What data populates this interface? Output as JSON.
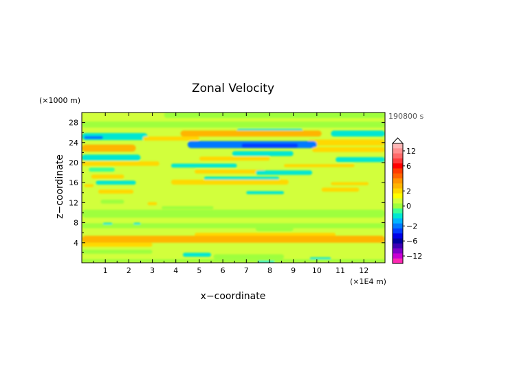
{
  "chart_data": {
    "type": "heatmap",
    "title": "Zonal Velocity",
    "xlabel": "x−coordinate",
    "ylabel": "z−coordinate",
    "x_unit": "(×1E4 m)",
    "y_unit": "(×1000 m)",
    "time_label": "190800 s",
    "xlim": [
      0,
      12.9
    ],
    "ylim": [
      0,
      30
    ],
    "x_ticks": [
      {
        "value": 1,
        "label": "1"
      },
      {
        "value": 2,
        "label": "2"
      },
      {
        "value": 3,
        "label": "3"
      },
      {
        "value": 4,
        "label": "4"
      },
      {
        "value": 5,
        "label": "5"
      },
      {
        "value": 6,
        "label": "6"
      },
      {
        "value": 7,
        "label": "7"
      },
      {
        "value": 8,
        "label": "8"
      },
      {
        "value": 9,
        "label": "9"
      },
      {
        "value": 10,
        "label": "10"
      },
      {
        "value": 11,
        "label": "11"
      },
      {
        "value": 12,
        "label": "12"
      }
    ],
    "y_ticks": [
      {
        "value": 4,
        "label": "4"
      },
      {
        "value": 8,
        "label": "8"
      },
      {
        "value": 12,
        "label": "12"
      },
      {
        "value": 16,
        "label": "16"
      },
      {
        "value": 20,
        "label": "20"
      },
      {
        "value": 24,
        "label": "24"
      },
      {
        "value": 28,
        "label": "28"
      }
    ],
    "background_value": 1.0,
    "bands": [
      {
        "z": 29.5,
        "thickness": 1.2,
        "value": 0.3,
        "x_start": 3.5,
        "x_end": 12.9
      },
      {
        "z": 27.6,
        "thickness": 1.2,
        "value": 0.3,
        "x_start": 0,
        "x_end": 12.9
      },
      {
        "z": 26.4,
        "thickness": 0.8,
        "value": -0.6,
        "x_start": 6.6,
        "x_end": 9.4
      },
      {
        "z": 25.8,
        "thickness": 1.2,
        "value": 2.8,
        "x_start": 4.2,
        "x_end": 10.2
      },
      {
        "z": 25.8,
        "thickness": 1.2,
        "value": -0.8,
        "x_start": 10.6,
        "x_end": 12.9
      },
      {
        "z": 25.2,
        "thickness": 1.4,
        "value": -1.0,
        "x_start": 0,
        "x_end": 2.8
      },
      {
        "z": 25.0,
        "thickness": 0.6,
        "value": -2.0,
        "x_start": 0.1,
        "x_end": 0.9
      },
      {
        "z": 24.8,
        "thickness": 0.8,
        "value": 2.0,
        "x_start": 2.6,
        "x_end": 5.0
      },
      {
        "z": 24.0,
        "thickness": 1.2,
        "value": 2.4,
        "x_start": 9.6,
        "x_end": 12.9
      },
      {
        "z": 23.6,
        "thickness": 1.4,
        "value": -1.6,
        "x_start": 4.5,
        "x_end": 10.0
      },
      {
        "z": 23.4,
        "thickness": 0.8,
        "value": -2.2,
        "x_start": 6.8,
        "x_end": 9.2
      },
      {
        "z": 22.9,
        "thickness": 1.4,
        "value": 2.6,
        "x_start": 0,
        "x_end": 2.3
      },
      {
        "z": 22.6,
        "thickness": 1.0,
        "value": 2.2,
        "x_start": 9.8,
        "x_end": 12.9
      },
      {
        "z": 21.8,
        "thickness": 1.0,
        "value": -0.7,
        "x_start": 6.4,
        "x_end": 9.0
      },
      {
        "z": 21.0,
        "thickness": 1.2,
        "value": -1.0,
        "x_start": 0,
        "x_end": 2.5
      },
      {
        "z": 20.8,
        "thickness": 0.8,
        "value": 2.0,
        "x_start": 5.0,
        "x_end": 8.0
      },
      {
        "z": 20.6,
        "thickness": 1.0,
        "value": -0.8,
        "x_start": 10.8,
        "x_end": 12.9
      },
      {
        "z": 19.8,
        "thickness": 0.9,
        "value": 2.2,
        "x_start": 0,
        "x_end": 3.3
      },
      {
        "z": 19.4,
        "thickness": 0.8,
        "value": -0.7,
        "x_start": 3.8,
        "x_end": 6.6
      },
      {
        "z": 19.4,
        "thickness": 0.6,
        "value": 2.0,
        "x_start": 8.6,
        "x_end": 11.6
      },
      {
        "z": 18.6,
        "thickness": 0.8,
        "value": -0.5,
        "x_start": 0.3,
        "x_end": 1.4
      },
      {
        "z": 18.2,
        "thickness": 0.8,
        "value": 2.0,
        "x_start": 4.8,
        "x_end": 7.8
      },
      {
        "z": 18.0,
        "thickness": 0.9,
        "value": -0.6,
        "x_start": 7.4,
        "x_end": 9.8
      },
      {
        "z": 17.2,
        "thickness": 0.8,
        "value": 2.0,
        "x_start": 0.4,
        "x_end": 1.8
      },
      {
        "z": 16.8,
        "thickness": 0.8,
        "value": -0.6,
        "x_start": 5.2,
        "x_end": 8.4
      },
      {
        "z": 16.1,
        "thickness": 1.0,
        "value": 2.4,
        "x_start": 3.8,
        "x_end": 8.8
      },
      {
        "z": 16.0,
        "thickness": 0.8,
        "value": -0.8,
        "x_start": 0.6,
        "x_end": 2.3
      },
      {
        "z": 15.8,
        "thickness": 0.6,
        "value": 2.0,
        "x_start": 10.6,
        "x_end": 12.2
      },
      {
        "z": 15.4,
        "thickness": 0.6,
        "value": 2.0,
        "x_start": 0.1,
        "x_end": 0.5
      },
      {
        "z": 14.6,
        "thickness": 0.8,
        "value": 2.0,
        "x_start": 10.2,
        "x_end": 11.8
      },
      {
        "z": 14.2,
        "thickness": 0.8,
        "value": 2.0,
        "x_start": 0.7,
        "x_end": 2.2
      },
      {
        "z": 14.0,
        "thickness": 0.6,
        "value": -0.6,
        "x_start": 7.0,
        "x_end": 8.6
      },
      {
        "z": 12.2,
        "thickness": 0.8,
        "value": 0.3,
        "x_start": 0.8,
        "x_end": 1.8
      },
      {
        "z": 11.8,
        "thickness": 0.6,
        "value": 2.0,
        "x_start": 2.8,
        "x_end": 3.2
      },
      {
        "z": 11.0,
        "thickness": 0.6,
        "value": 0.3,
        "x_start": 3.4,
        "x_end": 5.6
      },
      {
        "z": 9.8,
        "thickness": 1.6,
        "value": 0.3,
        "x_start": 0,
        "x_end": 12.9
      },
      {
        "z": 7.4,
        "thickness": 1.0,
        "value": 0.3,
        "x_start": 0,
        "x_end": 12.9
      },
      {
        "z": 7.8,
        "thickness": 0.4,
        "value": -0.6,
        "x_start": 0.9,
        "x_end": 1.3
      },
      {
        "z": 7.8,
        "thickness": 0.4,
        "value": -0.6,
        "x_start": 2.2,
        "x_end": 2.5
      },
      {
        "z": 6.8,
        "thickness": 1.0,
        "value": 0.3,
        "x_start": 7.4,
        "x_end": 9.0
      },
      {
        "z": 5.6,
        "thickness": 0.8,
        "value": 2.0,
        "x_start": 4.8,
        "x_end": 10.8
      },
      {
        "z": 4.7,
        "thickness": 1.4,
        "value": 2.6,
        "x_start": 0,
        "x_end": 12.9
      },
      {
        "z": 3.6,
        "thickness": 0.8,
        "value": 2.0,
        "x_start": 0,
        "x_end": 3.0
      },
      {
        "z": 2.2,
        "thickness": 0.8,
        "value": 0.3,
        "x_start": 0,
        "x_end": 3.0
      },
      {
        "z": 1.6,
        "thickness": 0.8,
        "value": -0.7,
        "x_start": 4.3,
        "x_end": 5.5
      },
      {
        "z": 1.2,
        "thickness": 1.0,
        "value": 0.3,
        "x_start": 5.6,
        "x_end": 8.6
      },
      {
        "z": 0.8,
        "thickness": 0.6,
        "value": -0.6,
        "x_start": 9.7,
        "x_end": 10.6
      },
      {
        "z": 0.4,
        "thickness": 0.6,
        "value": 0.3,
        "x_start": 0,
        "x_end": 12.9
      },
      {
        "z": 0.2,
        "thickness": 0.4,
        "value": -0.6,
        "x_start": 7.5,
        "x_end": 8.2
      }
    ],
    "colorbar": {
      "ticks": [
        {
          "value": 12,
          "label": "12"
        },
        {
          "value": 6,
          "label": "6"
        },
        {
          "value": 2,
          "label": "2"
        },
        {
          "value": 0,
          "label": "0"
        },
        {
          "value": -2,
          "label": "−2"
        },
        {
          "value": -6,
          "label": "−6"
        },
        {
          "value": -12,
          "label": "−12"
        }
      ],
      "levels": [
        {
          "value": 14,
          "color": "#ffb6b6"
        },
        {
          "value": 12,
          "color": "#ff9090"
        },
        {
          "value": 10,
          "color": "#ff6a6a"
        },
        {
          "value": 8,
          "color": "#ff3a3a"
        },
        {
          "value": 6,
          "color": "#ff0000"
        },
        {
          "value": 5,
          "color": "#ff3c00"
        },
        {
          "value": 4,
          "color": "#ff6400"
        },
        {
          "value": 3,
          "color": "#ff9400"
        },
        {
          "value": 2.5,
          "color": "#ffb400"
        },
        {
          "value": 2,
          "color": "#ffd800"
        },
        {
          "value": 1.5,
          "color": "#ffff00"
        },
        {
          "value": 0.5,
          "color": "#d2ff3c"
        },
        {
          "value": 0,
          "color": "#9eff3c"
        },
        {
          "value": -0.5,
          "color": "#3cff96"
        },
        {
          "value": -1,
          "color": "#00e6d2"
        },
        {
          "value": -1.5,
          "color": "#00b4ff"
        },
        {
          "value": -2,
          "color": "#0078ff"
        },
        {
          "value": -3,
          "color": "#003cff"
        },
        {
          "value": -4,
          "color": "#0000e6"
        },
        {
          "value": -6,
          "color": "#0000a0"
        },
        {
          "value": -8,
          "color": "#3c00b4"
        },
        {
          "value": -10,
          "color": "#8000c8"
        },
        {
          "value": -12,
          "color": "#c800d2"
        },
        {
          "value": -14,
          "color": "#ff28b4"
        }
      ]
    }
  }
}
